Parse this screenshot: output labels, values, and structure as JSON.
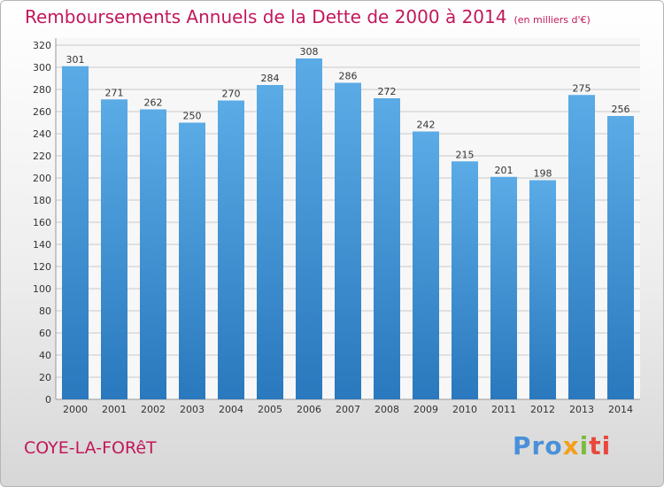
{
  "chart_data": {
    "type": "bar",
    "title": "Remboursements Annuels de la Dette de 2000 à 2014",
    "subtitle": "(en milliers d'€)",
    "categories": [
      "2000",
      "2001",
      "2002",
      "2003",
      "2004",
      "2005",
      "2006",
      "2007",
      "2008",
      "2009",
      "2010",
      "2011",
      "2012",
      "2013",
      "2014"
    ],
    "values": [
      301,
      271,
      262,
      250,
      270,
      284,
      308,
      286,
      272,
      242,
      215,
      201,
      198,
      275,
      256
    ],
    "ylim": [
      0,
      320
    ],
    "yticks": [
      0,
      20,
      40,
      60,
      80,
      100,
      120,
      140,
      160,
      180,
      200,
      220,
      240,
      260,
      280,
      300,
      320
    ],
    "grid": true,
    "bar_color_top": "#5aabe6",
    "bar_color_bottom": "#2a78bd"
  },
  "location": "COYE-LA-FORêT",
  "brand": {
    "part1": "Pro",
    "part2": "x",
    "part3": "i",
    "part4": "ti"
  },
  "colors": {
    "title": "#c2185b",
    "grid": "#c8c8c8"
  }
}
